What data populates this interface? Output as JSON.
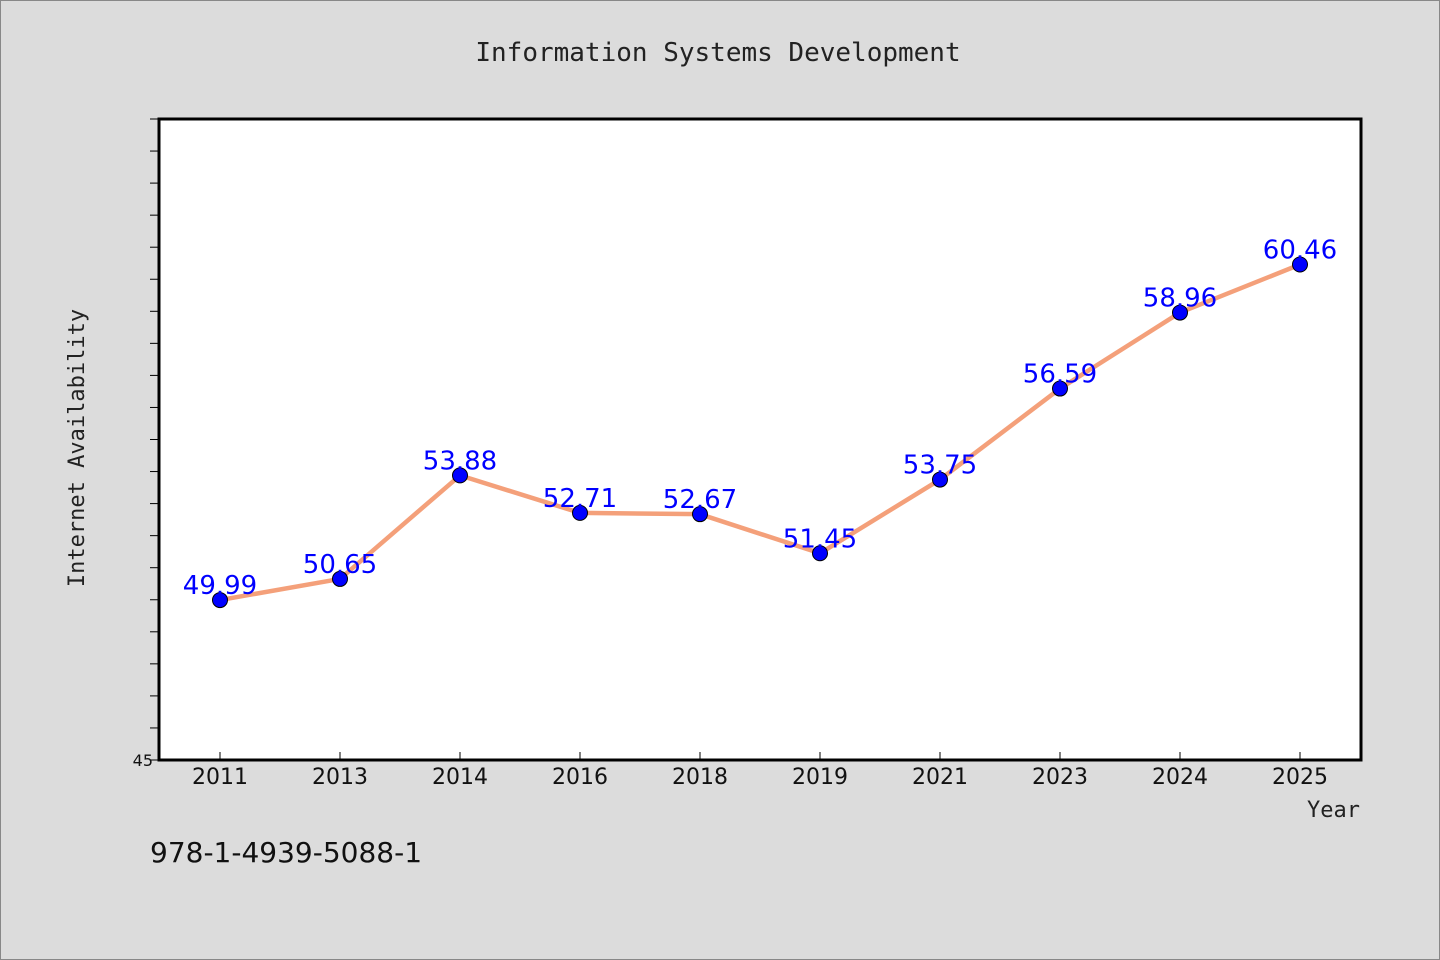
{
  "chart_data": {
    "type": "line",
    "title": "Information Systems Development",
    "xlabel": "Year",
    "ylabel": "Internet Availability",
    "categories": [
      "2011",
      "2013",
      "2014",
      "2016",
      "2018",
      "2019",
      "2021",
      "2023",
      "2024",
      "2025"
    ],
    "series": [
      {
        "values": [
          49.99,
          50.65,
          53.88,
          52.71,
          52.67,
          51.45,
          53.75,
          56.59,
          58.96,
          60.46
        ],
        "data_labels": [
          "49.99",
          "50.65",
          "53.88",
          "52.71",
          "52.67",
          "51.45",
          "53.75",
          "56.59",
          "58.96",
          "60.46"
        ]
      }
    ],
    "ylim": [
      45,
      65
    ],
    "y_tick_labels": [
      "45"
    ],
    "grid": false,
    "colors": {
      "line": "#f4a07a",
      "marker": "#0000ff",
      "label": "#0000ff",
      "background": "#dcdcdc",
      "plot": "#ffffff"
    }
  },
  "footer": {
    "isbn": "978-1-4939-5088-1"
  }
}
